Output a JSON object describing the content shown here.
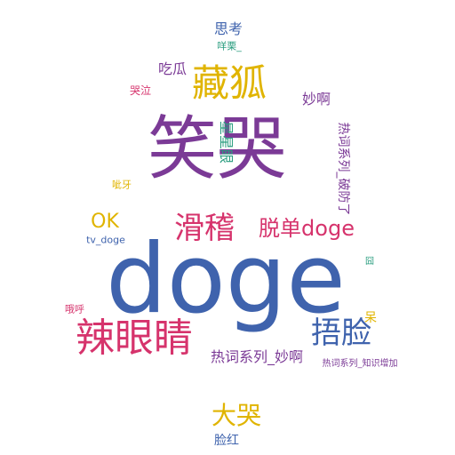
{
  "colors": {
    "purple": "#7b3a96",
    "blue": "#3f63ad",
    "pink": "#d6336c",
    "gold": "#e0b400",
    "teal": "#2a9d7f"
  },
  "words": [
    {
      "text": "doge",
      "color": "blue",
      "orientation": "horizontal"
    },
    {
      "text": "笑哭",
      "color": "purple",
      "orientation": "horizontal"
    },
    {
      "text": "辣眼睛",
      "color": "pink",
      "orientation": "horizontal"
    },
    {
      "text": "藏狐",
      "color": "gold",
      "orientation": "horizontal"
    },
    {
      "text": "滑稽",
      "color": "pink",
      "orientation": "horizontal"
    },
    {
      "text": "捂脸",
      "color": "blue",
      "orientation": "horizontal"
    },
    {
      "text": "脱单doge",
      "color": "pink",
      "orientation": "horizontal"
    },
    {
      "text": "大哭",
      "color": "gold",
      "orientation": "horizontal"
    },
    {
      "text": "OK",
      "color": "gold",
      "orientation": "horizontal"
    },
    {
      "text": "吃瓜",
      "color": "purple",
      "orientation": "horizontal"
    },
    {
      "text": "思考",
      "color": "blue",
      "orientation": "horizontal"
    },
    {
      "text": "妙啊",
      "color": "purple",
      "orientation": "horizontal"
    },
    {
      "text": "星星眼",
      "color": "teal",
      "orientation": "vertical"
    },
    {
      "text": "热词系列_妙啊",
      "color": "purple",
      "orientation": "horizontal"
    },
    {
      "text": "脸红",
      "color": "blue",
      "orientation": "horizontal"
    },
    {
      "text": "热词系列_破防了",
      "color": "purple",
      "orientation": "vertical"
    },
    {
      "text": "呆",
      "color": "gold",
      "orientation": "horizontal"
    },
    {
      "text": "哭泣",
      "color": "pink",
      "orientation": "horizontal"
    },
    {
      "text": "咩栗_",
      "color": "teal",
      "orientation": "horizontal"
    },
    {
      "text": "呲牙",
      "color": "gold",
      "orientation": "horizontal"
    },
    {
      "text": "tv_doge",
      "color": "blue",
      "orientation": "horizontal"
    },
    {
      "text": "哦呼",
      "color": "pink",
      "orientation": "horizontal"
    },
    {
      "text": "囧",
      "color": "teal",
      "orientation": "horizontal"
    },
    {
      "text": "热词系列_知识增加",
      "color": "purple",
      "orientation": "horizontal"
    }
  ]
}
